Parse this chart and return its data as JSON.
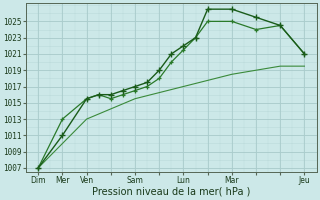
{
  "background_color": "#cce8e8",
  "grid_color_minor": "#aacccc",
  "grid_color_major": "#99bbbb",
  "line_color1": "#1a5c1a",
  "line_color2": "#2a7a2a",
  "line_color3": "#3a8a3a",
  "xlabel": "Pression niveau de la mer( hPa )",
  "ylim": [
    1006.5,
    1027.2
  ],
  "yticks": [
    1007,
    1009,
    1011,
    1013,
    1015,
    1017,
    1019,
    1021,
    1023,
    1025
  ],
  "xtick_labels": [
    "Dim",
    "Mer",
    "Ven",
    "",
    "Sam",
    "",
    "Lun",
    "",
    "Mar",
    "",
    "",
    "Jeu"
  ],
  "xtick_positions": [
    0,
    1,
    2,
    3,
    4,
    5,
    6,
    7,
    8,
    9,
    10,
    11
  ],
  "series1_x": [
    0,
    1,
    2,
    2.5,
    3,
    3.5,
    4,
    4.5,
    5,
    5.5,
    6,
    6.5,
    7,
    8,
    9,
    10,
    11
  ],
  "series1_y": [
    1007,
    1011,
    1015.5,
    1016,
    1016,
    1016.5,
    1017,
    1017.5,
    1019,
    1021,
    1022,
    1023,
    1026.5,
    1026.5,
    1025.5,
    1024.5,
    1021
  ],
  "series2_x": [
    0,
    1,
    2,
    2.5,
    3,
    3.5,
    4,
    4.5,
    5,
    5.5,
    6,
    6.5,
    7,
    8,
    9,
    10,
    11
  ],
  "series2_y": [
    1007,
    1013,
    1015.5,
    1016,
    1015.5,
    1016,
    1016.5,
    1017,
    1018,
    1020,
    1021.5,
    1023,
    1025,
    1025,
    1024,
    1024.5,
    1021
  ],
  "series3_x": [
    0,
    1,
    2,
    4,
    6,
    8,
    10,
    11
  ],
  "series3_y": [
    1007,
    1010,
    1013,
    1015.5,
    1017,
    1018.5,
    1019.5,
    1019.5
  ],
  "xlabel_fontsize": 7,
  "tick_fontsize": 5.5
}
